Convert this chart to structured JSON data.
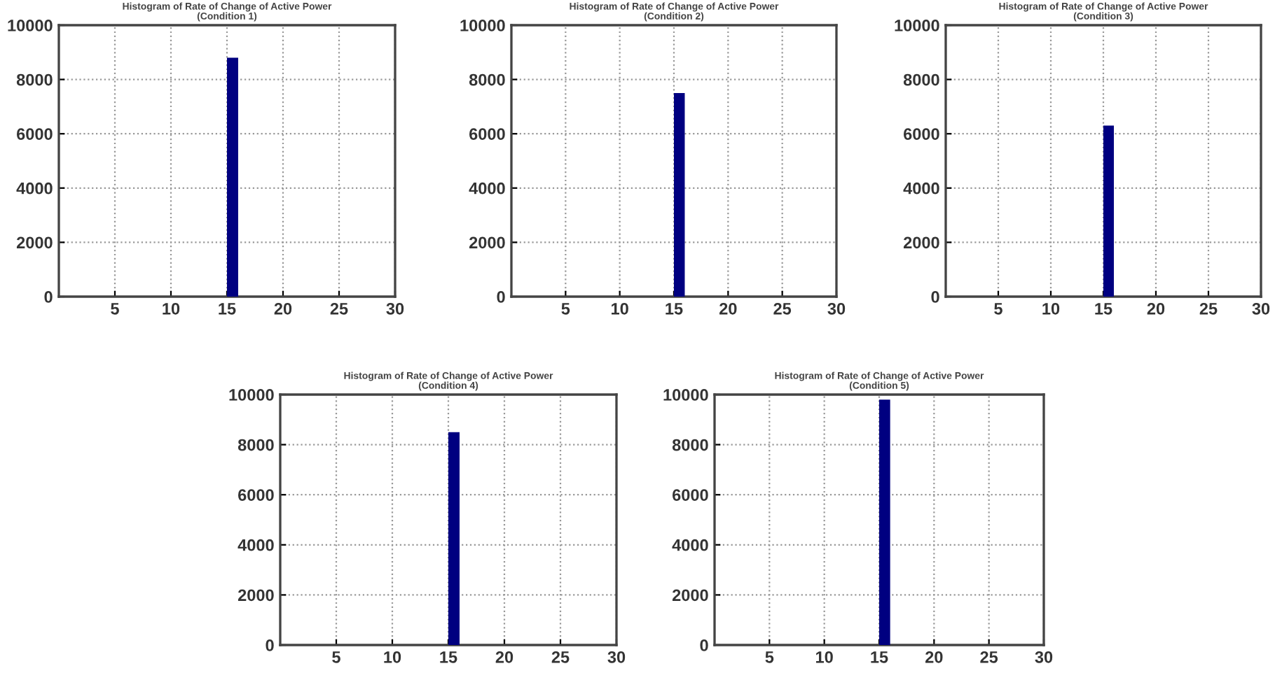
{
  "chart_data": [
    {
      "type": "histogram",
      "title": "Histogram of Rate of Change of Active Power\n(Condition 1)",
      "bins": [
        0,
        1,
        2,
        3,
        4,
        5,
        6,
        7,
        8,
        9,
        10,
        11,
        12,
        13,
        14,
        15,
        16,
        17,
        18,
        19,
        20,
        21,
        22,
        23,
        24,
        25,
        26,
        27,
        28,
        29,
        30
      ],
      "values": [
        0,
        0,
        0,
        0,
        0,
        0,
        0,
        0,
        0,
        0,
        0,
        0,
        0,
        0,
        0,
        8800,
        0,
        0,
        0,
        0,
        0,
        0,
        0,
        0,
        0,
        0,
        0,
        0,
        0,
        0
      ],
      "color": "#000080",
      "xlim": [
        0,
        30
      ],
      "xticks": [
        5,
        10,
        15,
        20,
        25,
        30
      ],
      "ylim": [
        0,
        10000
      ],
      "yticks": [
        0,
        2000,
        4000,
        6000,
        8000,
        10000
      ],
      "grid": true
    },
    {
      "type": "histogram",
      "title": "Histogram of Rate of Change of Active Power\n(Condition 2)",
      "bins": [
        0,
        1,
        2,
        3,
        4,
        5,
        6,
        7,
        8,
        9,
        10,
        11,
        12,
        13,
        14,
        15,
        16,
        17,
        18,
        19,
        20,
        21,
        22,
        23,
        24,
        25,
        26,
        27,
        28,
        29,
        30
      ],
      "values": [
        0,
        0,
        0,
        0,
        0,
        0,
        0,
        0,
        0,
        0,
        0,
        0,
        0,
        0,
        0,
        7500,
        0,
        0,
        0,
        0,
        0,
        0,
        0,
        0,
        0,
        0,
        0,
        0,
        0,
        0
      ],
      "color": "#000080",
      "xlim": [
        0,
        30
      ],
      "xticks": [
        5,
        10,
        15,
        20,
        25,
        30
      ],
      "ylim": [
        0,
        10000
      ],
      "yticks": [
        0,
        2000,
        4000,
        6000,
        8000,
        10000
      ],
      "grid": true
    },
    {
      "type": "histogram",
      "title": "Histogram of Rate of Change of Active Power\n(Condition 3)",
      "bins": [
        0,
        1,
        2,
        3,
        4,
        5,
        6,
        7,
        8,
        9,
        10,
        11,
        12,
        13,
        14,
        15,
        16,
        17,
        18,
        19,
        20,
        21,
        22,
        23,
        24,
        25,
        26,
        27,
        28,
        29,
        30
      ],
      "values": [
        0,
        0,
        0,
        0,
        0,
        0,
        0,
        0,
        0,
        0,
        0,
        0,
        0,
        0,
        0,
        6300,
        0,
        0,
        0,
        0,
        0,
        0,
        0,
        0,
        0,
        0,
        0,
        0,
        0,
        0
      ],
      "color": "#000080",
      "xlim": [
        0,
        30
      ],
      "xticks": [
        5,
        10,
        15,
        20,
        25,
        30
      ],
      "ylim": [
        0,
        10000
      ],
      "yticks": [
        0,
        2000,
        4000,
        6000,
        8000,
        10000
      ],
      "grid": true
    },
    {
      "type": "histogram",
      "title": "Histogram of Rate of Change of Active Power\n(Condition 4)",
      "bins": [
        0,
        1,
        2,
        3,
        4,
        5,
        6,
        7,
        8,
        9,
        10,
        11,
        12,
        13,
        14,
        15,
        16,
        17,
        18,
        19,
        20,
        21,
        22,
        23,
        24,
        25,
        26,
        27,
        28,
        29,
        30
      ],
      "values": [
        0,
        0,
        0,
        0,
        0,
        0,
        0,
        0,
        0,
        0,
        0,
        0,
        0,
        0,
        0,
        8500,
        0,
        0,
        0,
        0,
        0,
        0,
        0,
        0,
        0,
        0,
        0,
        0,
        0,
        0
      ],
      "color": "#000080",
      "xlim": [
        0,
        30
      ],
      "xticks": [
        5,
        10,
        15,
        20,
        25,
        30
      ],
      "ylim": [
        0,
        10000
      ],
      "yticks": [
        0,
        2000,
        4000,
        6000,
        8000,
        10000
      ],
      "grid": true
    },
    {
      "type": "histogram",
      "title": "Histogram of Rate of Change of Active Power\n(Condition 5)",
      "bins": [
        0,
        1,
        2,
        3,
        4,
        5,
        6,
        7,
        8,
        9,
        10,
        11,
        12,
        13,
        14,
        15,
        16,
        17,
        18,
        19,
        20,
        21,
        22,
        23,
        24,
        25,
        26,
        27,
        28,
        29,
        30
      ],
      "values": [
        0,
        0,
        0,
        0,
        0,
        0,
        0,
        0,
        0,
        0,
        0,
        0,
        0,
        0,
        0,
        9800,
        0,
        0,
        0,
        0,
        0,
        0,
        0,
        0,
        0,
        0,
        0,
        0,
        0,
        0
      ],
      "color": "#000080",
      "xlim": [
        0,
        30
      ],
      "xticks": [
        5,
        10,
        15,
        20,
        25,
        30
      ],
      "ylim": [
        0,
        10000
      ],
      "yticks": [
        0,
        2000,
        4000,
        6000,
        8000,
        10000
      ],
      "grid": true
    }
  ]
}
